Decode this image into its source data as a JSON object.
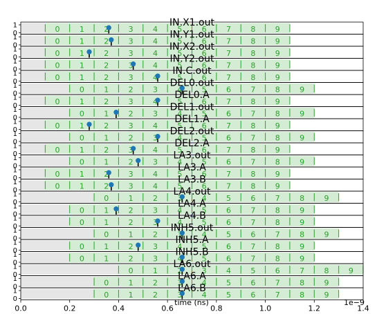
{
  "chart_data": {
    "type": "timing",
    "xlabel": "time (ns)",
    "x_offset_text": "1e−9",
    "xlim": [
      0,
      1.4
    ],
    "x_ticks": [
      "0.0",
      "0.2",
      "0.4",
      "0.6",
      "0.8",
      "1.0",
      "1.2",
      "1.4"
    ],
    "lane_yticks": [
      "0",
      "1"
    ],
    "colors": {
      "segment": "#2ca02c",
      "segment_fill": "#d4ebd4",
      "idle_fill": "#e6e6e6",
      "marker": "#1f77b4"
    },
    "lanes": [
      {
        "title": "IN.X1.out",
        "start": 0.1,
        "end": 1.1,
        "labels": [
          "0",
          "1",
          "2",
          "3",
          "4",
          "5",
          "6",
          "7",
          "8",
          "9"
        ],
        "marker": 0.36
      },
      {
        "title": "IN.Y1.out",
        "start": 0.1,
        "end": 1.1,
        "labels": [
          "0",
          "1",
          "2",
          "3",
          "4",
          "5",
          "6",
          "7",
          "8",
          "9"
        ],
        "marker": 0.37
      },
      {
        "title": "IN.X2.out",
        "start": 0.1,
        "end": 1.1,
        "labels": [
          "0",
          "1",
          "2",
          "3",
          "4",
          "5",
          "6",
          "7",
          "8",
          "9"
        ],
        "marker": 0.28
      },
      {
        "title": "IN.Y2.out",
        "start": 0.1,
        "end": 1.1,
        "labels": [
          "0",
          "1",
          "2",
          "3",
          "4",
          "5",
          "6",
          "7",
          "8",
          "9"
        ],
        "marker": 0.46
      },
      {
        "title": "IN.C.out",
        "start": 0.1,
        "end": 1.1,
        "labels": [
          "0",
          "1",
          "2",
          "3",
          "4",
          "5",
          "6",
          "7",
          "8",
          "9"
        ],
        "marker": 0.56
      },
      {
        "title": "DEL0.out",
        "start": 0.2,
        "end": 1.2,
        "labels": [
          "0",
          "1",
          "2",
          "3",
          "4",
          "5",
          "6",
          "7",
          "8",
          "9"
        ],
        "marker": 0.66
      },
      {
        "title": "DEL0.A",
        "start": 0.1,
        "end": 1.1,
        "labels": [
          "0",
          "1",
          "2",
          "3",
          "4",
          "5",
          "6",
          "7",
          "8",
          "9"
        ],
        "marker": 0.56
      },
      {
        "title": "DEL1.out",
        "start": 0.2,
        "end": 1.2,
        "labels": [
          "0",
          "1",
          "2",
          "3",
          "4",
          "5",
          "6",
          "7",
          "8",
          "9"
        ],
        "marker": 0.39
      },
      {
        "title": "DEL1.A",
        "start": 0.1,
        "end": 1.1,
        "labels": [
          "0",
          "1",
          "2",
          "3",
          "4",
          "5",
          "6",
          "7",
          "8",
          "9"
        ],
        "marker": 0.28
      },
      {
        "title": "DEL2.out",
        "start": 0.2,
        "end": 1.2,
        "labels": [
          "0",
          "1",
          "2",
          "3",
          "4",
          "5",
          "6",
          "7",
          "8",
          "9"
        ],
        "marker": 0.56
      },
      {
        "title": "DEL2.A",
        "start": 0.1,
        "end": 1.1,
        "labels": [
          "0",
          "1",
          "2",
          "3",
          "4",
          "5",
          "6",
          "7",
          "8",
          "9"
        ],
        "marker": 0.46
      },
      {
        "title": "LA3.out",
        "start": 0.2,
        "end": 1.2,
        "labels": [
          "0",
          "1",
          "2",
          "3",
          "4",
          "5",
          "6",
          "7",
          "8",
          "9"
        ],
        "marker": 0.48
      },
      {
        "title": "LA3.A",
        "start": 0.1,
        "end": 1.1,
        "labels": [
          "0",
          "1",
          "2",
          "3",
          "4",
          "5",
          "6",
          "7",
          "8",
          "9"
        ],
        "marker": 0.36
      },
      {
        "title": "LA3.B",
        "start": 0.1,
        "end": 1.1,
        "labels": [
          "0",
          "1",
          "2",
          "3",
          "4",
          "5",
          "6",
          "7",
          "8",
          "9"
        ],
        "marker": 0.37
      },
      {
        "title": "LA4.out",
        "start": 0.3,
        "end": 1.3,
        "labels": [
          "0",
          "1",
          "2",
          "3",
          "4",
          "5",
          "6",
          "7",
          "8",
          "9"
        ],
        "marker": 0.66
      },
      {
        "title": "LA4.A",
        "start": 0.2,
        "end": 1.2,
        "labels": [
          "0",
          "1",
          "2",
          "3",
          "4",
          "5",
          "6",
          "7",
          "8",
          "9"
        ],
        "marker": 0.39
      },
      {
        "title": "LA4.B",
        "start": 0.2,
        "end": 1.2,
        "labels": [
          "0",
          "1",
          "2",
          "3",
          "4",
          "5",
          "6",
          "7",
          "8",
          "9"
        ],
        "marker": 0.56
      },
      {
        "title": "INH5.out",
        "start": 0.3,
        "end": 1.3,
        "labels": [
          "0",
          "1",
          "2",
          "3",
          "4",
          "5",
          "6",
          "7",
          "8",
          "9"
        ],
        "marker": 0.66
      },
      {
        "title": "INH5.A",
        "start": 0.2,
        "end": 1.2,
        "labels": [
          "0",
          "1",
          "2",
          "3",
          "4",
          "5",
          "6",
          "7",
          "8",
          "9"
        ],
        "marker": 0.48
      },
      {
        "title": "INH5.B",
        "start": 0.2,
        "end": 1.2,
        "labels": [
          "0",
          "1",
          "2",
          "3",
          "4",
          "5",
          "6",
          "7",
          "8",
          "9"
        ],
        "marker": 0.66
      },
      {
        "title": "LA6.out",
        "start": 0.4,
        "end": 1.4,
        "labels": [
          "0",
          "1",
          "2",
          "3",
          "4",
          "5",
          "6",
          "7",
          "8",
          "9"
        ],
        "marker": 0.66
      },
      {
        "title": "LA6.A",
        "start": 0.3,
        "end": 1.3,
        "labels": [
          "0",
          "1",
          "2",
          "3",
          "4",
          "5",
          "6",
          "7",
          "8",
          "9"
        ],
        "marker": 0.66
      },
      {
        "title": "LA6.B",
        "start": 0.3,
        "end": 1.3,
        "labels": [
          "0",
          "1",
          "2",
          "3",
          "4",
          "5",
          "6",
          "7",
          "8",
          "9"
        ],
        "marker": 0.66
      }
    ]
  }
}
